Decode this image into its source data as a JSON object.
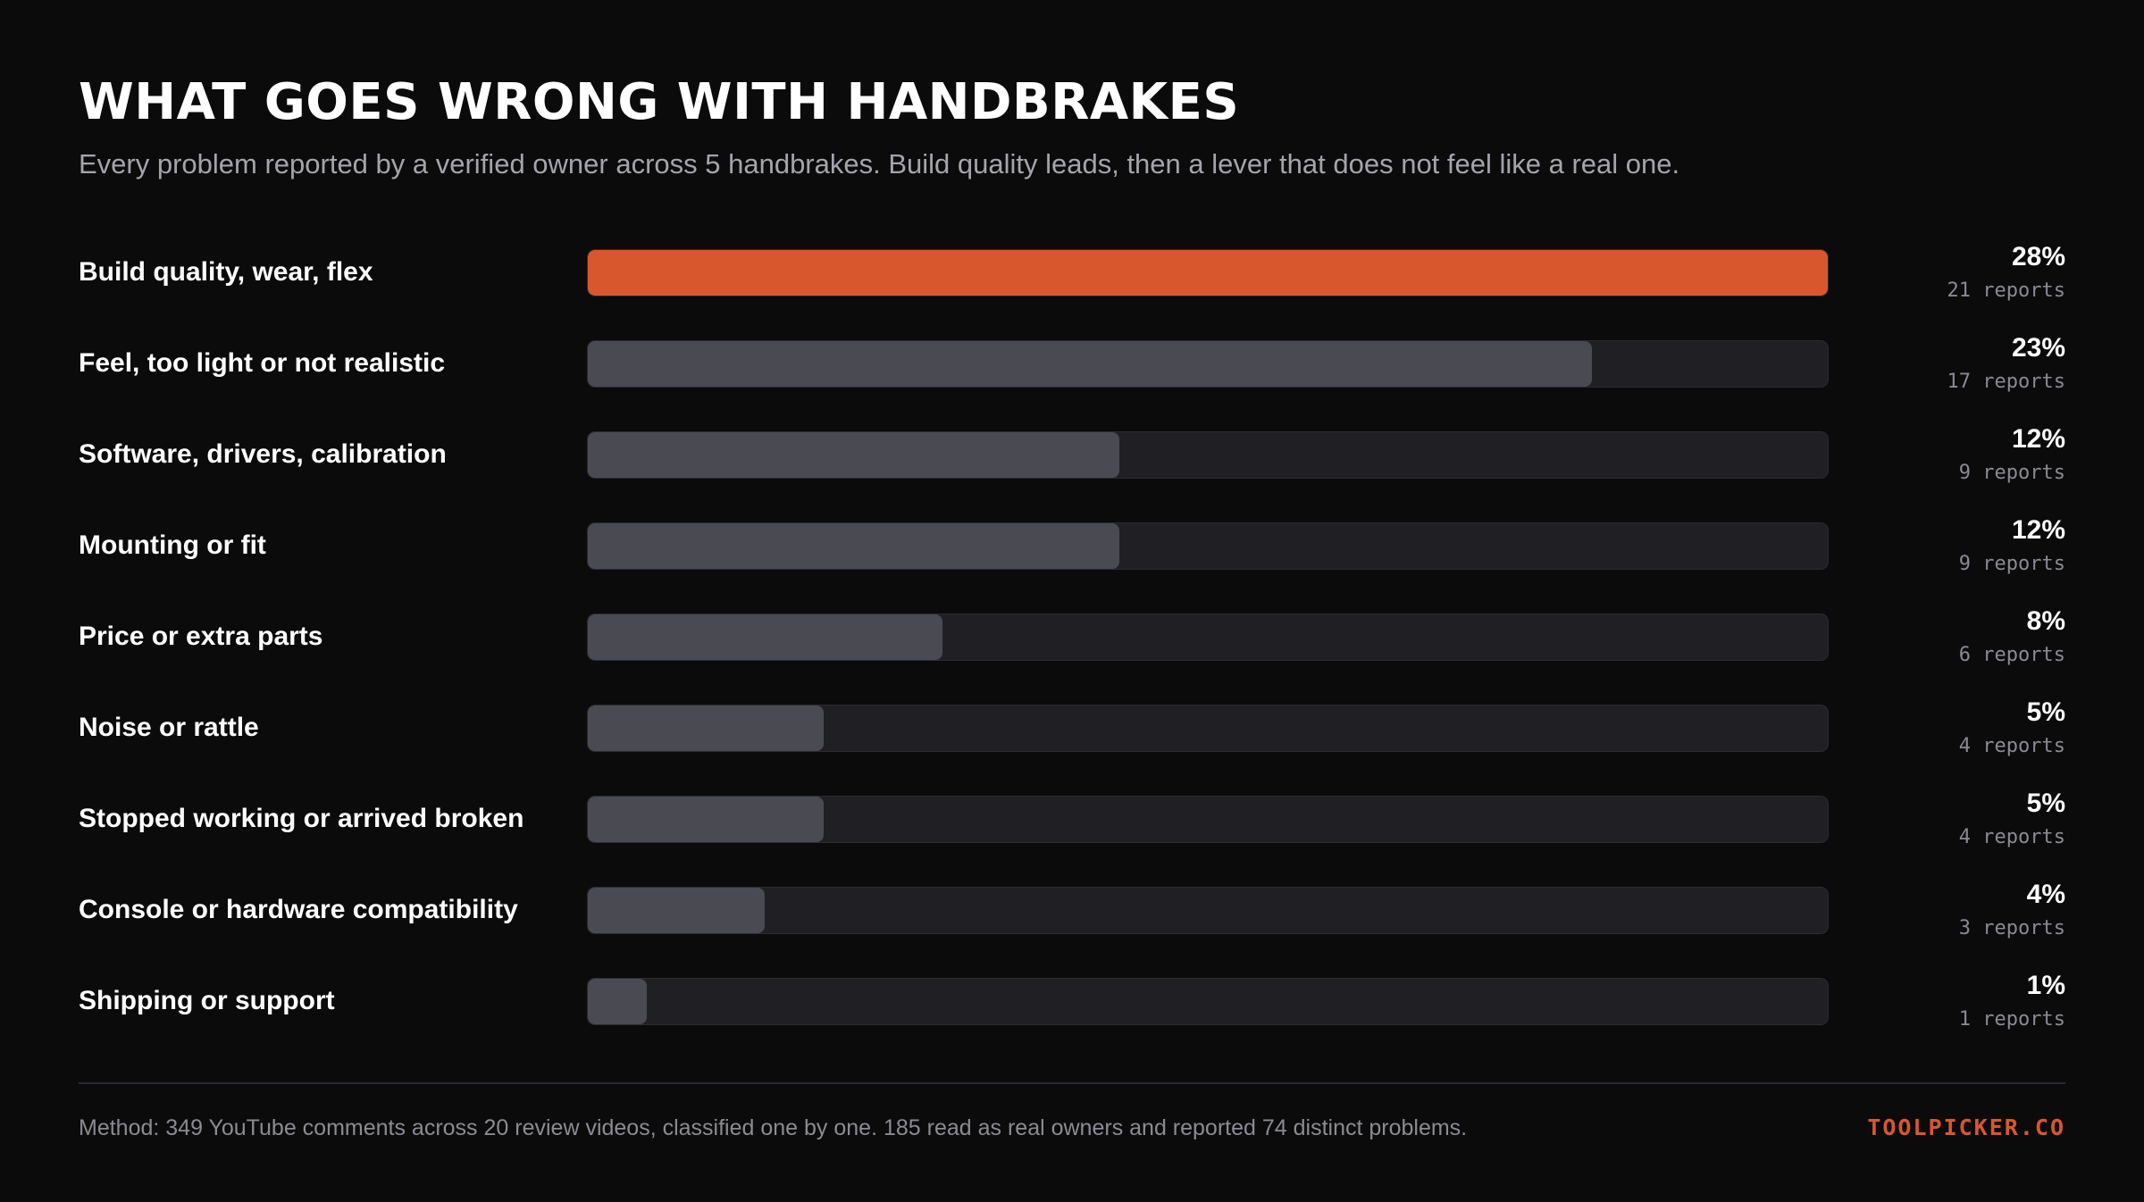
{
  "title": "WHAT GOES WRONG WITH HANDBRAKES",
  "subtitle": "Every problem reported by a verified owner across 5 handbrakes. Build quality leads, then a lever that does not feel like a real one.",
  "chart_data": {
    "type": "bar",
    "orientation": "horizontal",
    "title": "WHAT GOES WRONG WITH HANDBRAKES",
    "categories": [
      "Build quality, wear, flex",
      "Feel, too light or not realistic",
      "Software, drivers, calibration",
      "Mounting or fit",
      "Price or extra parts",
      "Noise or rattle",
      "Stopped working or arrived broken",
      "Console or hardware compatibility",
      "Shipping or support"
    ],
    "values": [
      28,
      23,
      12,
      12,
      8,
      5,
      5,
      4,
      1
    ],
    "value_labels": [
      "28%",
      "23%",
      "12%",
      "12%",
      "8%",
      "5%",
      "5%",
      "4%",
      "1%"
    ],
    "counts": [
      21,
      17,
      9,
      9,
      6,
      4,
      4,
      3,
      1
    ],
    "count_labels": [
      "21 reports",
      "17 reports",
      "9 reports",
      "9 reports",
      "6 reports",
      "4 reports",
      "4 reports",
      "3 reports",
      "1 reports"
    ],
    "xlim": [
      0,
      21
    ],
    "highlight_index": 0,
    "colors": {
      "highlight": "#d9572d",
      "bar": "#4a4a53",
      "track": "#202024"
    },
    "grid": false
  },
  "footer": {
    "method": "Method: 349 YouTube comments across 20 review videos, classified one by one. 185 read as real owners and reported 74 distinct problems.",
    "brand": "TOOLPICKER.CO"
  }
}
